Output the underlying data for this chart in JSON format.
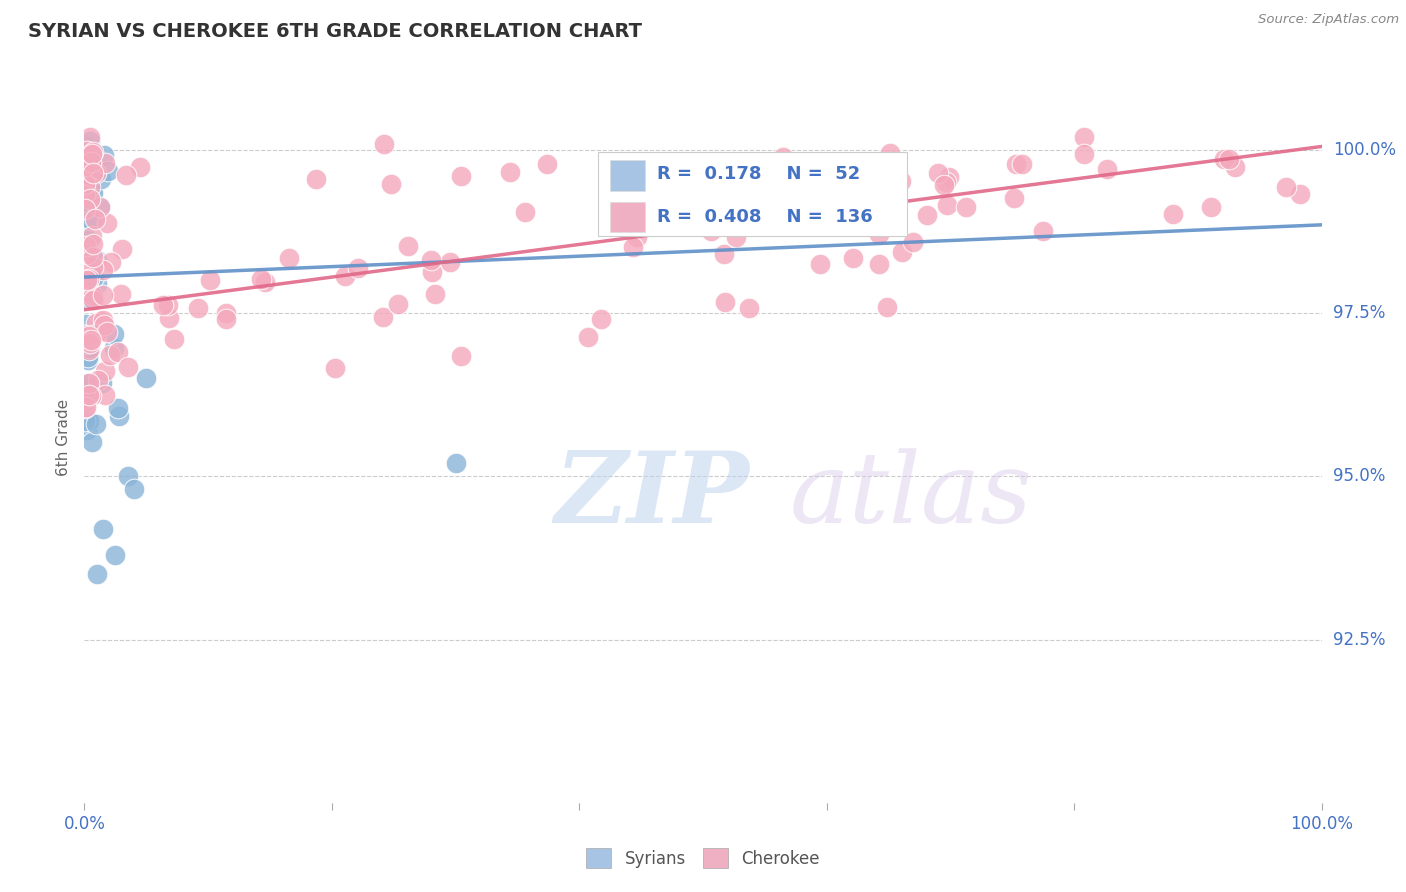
{
  "title": "SYRIAN VS CHEROKEE 6TH GRADE CORRELATION CHART",
  "source": "Source: ZipAtlas.com",
  "ylabel": "6th Grade",
  "x_min": 0.0,
  "x_max": 100.0,
  "y_min": 90.0,
  "y_max": 101.2,
  "y_ticks": [
    92.5,
    95.0,
    97.5,
    100.0
  ],
  "y_tick_labels": [
    "92.5%",
    "95.0%",
    "97.5%",
    "100.0%"
  ],
  "blue_R": 0.178,
  "blue_N": 52,
  "pink_R": 0.408,
  "pink_N": 136,
  "blue_color": "#8ab4d8",
  "pink_color": "#f4a8bc",
  "blue_line_color": "#6090c8",
  "pink_line_color": "#e06888",
  "legend_box_color_blue": "#a8c4e4",
  "legend_box_color_pink": "#f0b0c4",
  "watermark_zip_color": "#c0d4f0",
  "watermark_atlas_color": "#d8c8e8",
  "background_color": "#ffffff",
  "grid_color": "#cccccc",
  "tick_color": "#4472c4",
  "title_color": "#333333",
  "source_color": "#888888",
  "ylabel_color": "#666666",
  "blue_line_y0": 98.05,
  "blue_line_y1": 98.85,
  "pink_line_y0": 97.55,
  "pink_line_y1": 100.05
}
